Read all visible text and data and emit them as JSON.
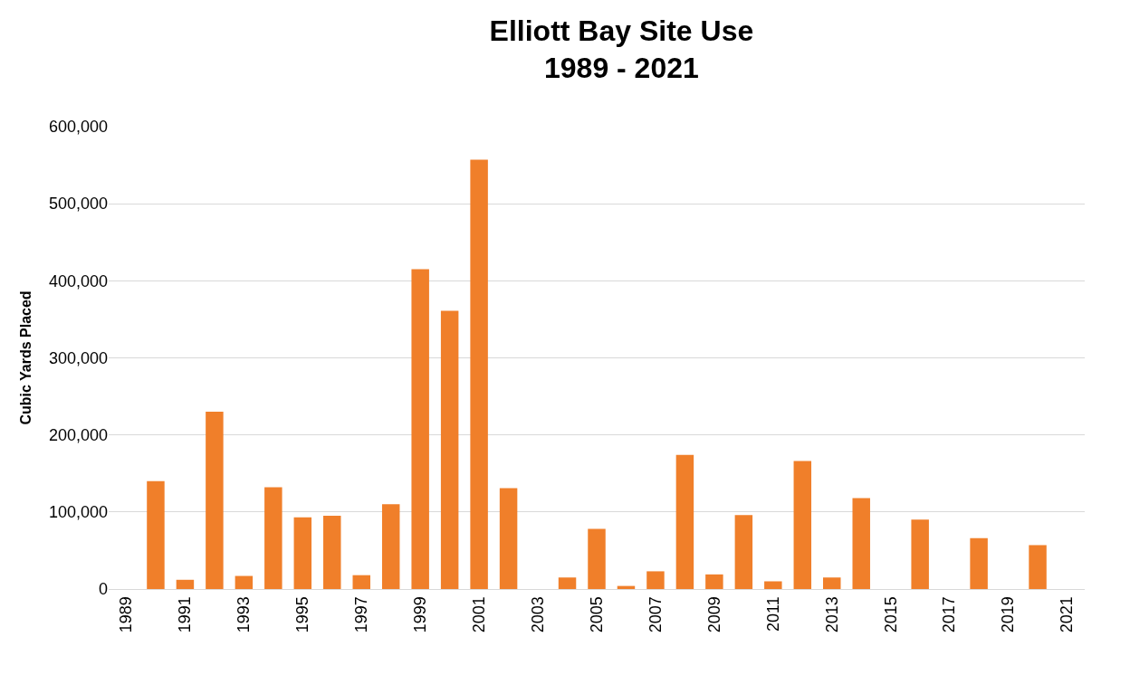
{
  "chart_data": {
    "type": "bar",
    "title": "Elliott Bay Site Use\n1989 - 2021",
    "ylabel": "Cubic Yards Placed",
    "categories": [
      "1989",
      null,
      "1991",
      null,
      "1993",
      null,
      "1995",
      null,
      "1997",
      null,
      "1999",
      null,
      "2001",
      null,
      "2003",
      null,
      "2005",
      null,
      "2007",
      null,
      "2009",
      null,
      "2011",
      null,
      "2013",
      null,
      "2015",
      null,
      "2017",
      null,
      "2019",
      null,
      "2021"
    ],
    "values": [
      0,
      140000,
      12000,
      230000,
      17000,
      132000,
      93000,
      95000,
      18000,
      110000,
      415000,
      361000,
      557000,
      131000,
      0,
      15000,
      78000,
      4000,
      23000,
      174000,
      19000,
      96000,
      10000,
      166000,
      15000,
      118000,
      0,
      90000,
      0,
      66000,
      0,
      57000,
      0
    ],
    "color": "#f07f2a",
    "ylim": [
      0,
      600000
    ],
    "yticks": [
      {
        "value": 0,
        "label": "0"
      },
      {
        "value": 100000,
        "label": "100,000"
      },
      {
        "value": 200000,
        "label": "200,000"
      },
      {
        "value": 300000,
        "label": "300,000"
      },
      {
        "value": 400000,
        "label": "400,000"
      },
      {
        "value": 500000,
        "label": "500,000"
      },
      {
        "value": 600000,
        "label": "600,000"
      }
    ],
    "grid": "y"
  }
}
